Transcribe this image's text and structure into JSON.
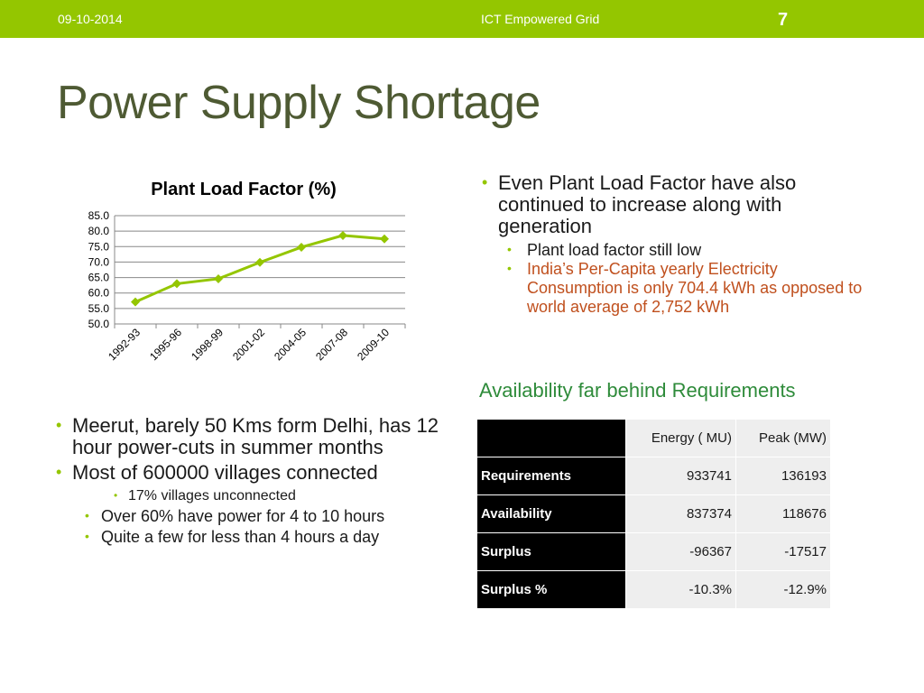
{
  "header": {
    "date": "09-10-2014",
    "title": "ICT Empowered Grid",
    "slide_number": "7"
  },
  "slide_title": "Power Supply Shortage",
  "chart_data": {
    "type": "line",
    "title": "Plant Load Factor (%)",
    "categories": [
      "1992-93",
      "1995-96",
      "1998-99",
      "2001-02",
      "2004-05",
      "2007-08",
      "2009-10"
    ],
    "values": [
      57.1,
      63.0,
      64.6,
      69.9,
      74.8,
      78.6,
      77.5
    ],
    "ylim": [
      50.0,
      85.0
    ],
    "yticks": [
      "50.0",
      "55.0",
      "60.0",
      "65.0",
      "70.0",
      "75.0",
      "80.0",
      "85.0"
    ],
    "grid": true,
    "legend": "none",
    "color": "#94c600"
  },
  "right_bullets": {
    "main": "Even Plant Load Factor have also continued to increase along with generation",
    "sub1": "Plant load factor still low",
    "sub2": "India’s Per-Capita yearly Electricity Consumption is only 704.4 kWh as opposed to world average of 2,752 kWh"
  },
  "availability_title": "Availability far behind Requirements",
  "table": {
    "headers": [
      "",
      "Energy ( MU)",
      "Peak (MW)"
    ],
    "rows": [
      {
        "label": "Requirements",
        "energy": "933741",
        "peak": "136193"
      },
      {
        "label": "Availability",
        "energy": "837374",
        "peak": "118676"
      },
      {
        "label": "Surplus",
        "energy": "-96367",
        "peak": "-17517"
      },
      {
        "label": "Surplus %",
        "energy": "-10.3%",
        "peak": "-12.9%"
      }
    ]
  },
  "left_bullets": {
    "b1": "Meerut, barely 50 Kms form Delhi, has 12 hour power-cuts in summer months",
    "b2": "Most of 600000 villages connected",
    "b2_sub": "17% villages unconnected",
    "b3": "Over 60% have power for 4 to 10 hours",
    "b4": "Quite a few for less than 4 hours a day"
  },
  "colors": {
    "accent": "#94c600",
    "title": "#4e5a33",
    "highlight": "#c0501e",
    "subheading": "#2e8b3a"
  }
}
